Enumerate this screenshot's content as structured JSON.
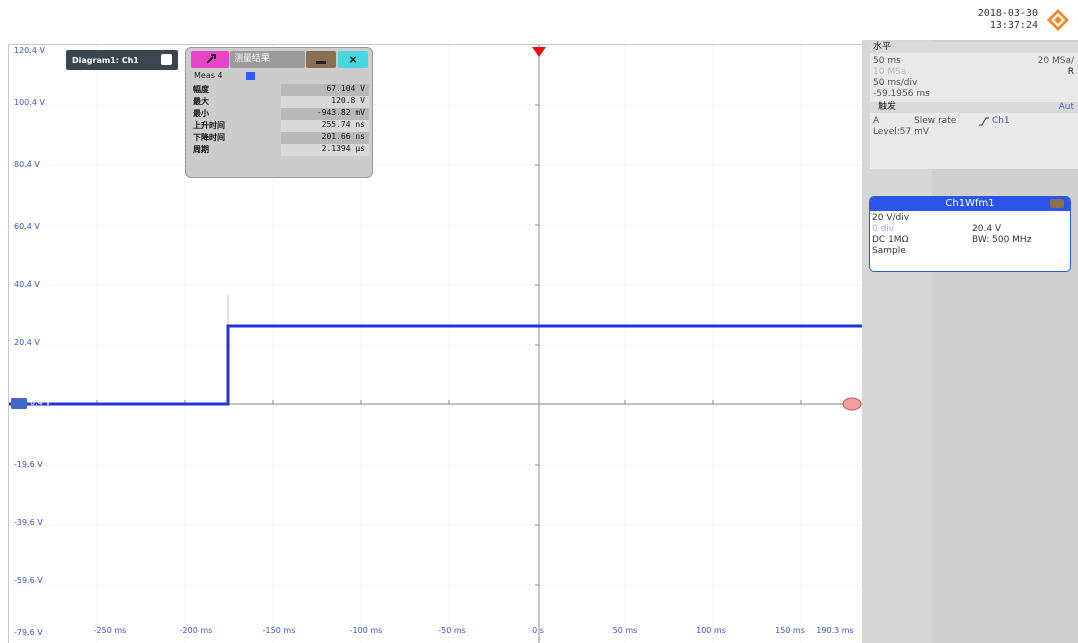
{
  "header": {
    "date": "2018-03-30",
    "time": "13:37:24"
  },
  "plot": {
    "y_labels": [
      "120.4 V",
      "100.4 V",
      "80.4 V",
      "60.4 V",
      "40.4 V",
      "20.4 V",
      "0.4 V",
      "-19.6 V",
      "-39.6 V",
      "-59.6 V",
      "-79.6 V"
    ],
    "x_labels": [
      "-250 ms",
      "-200 ms",
      "-150 ms",
      "-100 ms",
      "-50 ms",
      "0 s",
      "50 ms",
      "100 ms",
      "150 ms",
      "190.3 ms"
    ],
    "ch1_marker": "1"
  },
  "diagram_tab": {
    "label": "Diagram1: Ch1"
  },
  "measurement": {
    "title": "测量结果",
    "source": "Meas 4",
    "rows": [
      {
        "name": "幅度",
        "value": "67.104 V"
      },
      {
        "name": "最大",
        "value": "120.8 V"
      },
      {
        "name": "最小",
        "value": "-943.82 mV"
      },
      {
        "name": "上升时间",
        "value": "255.74 ns"
      },
      {
        "name": "下降时间",
        "value": "201.66 ns"
      },
      {
        "name": "周期",
        "value": "2.1394 µs"
      }
    ],
    "close_label": "×"
  },
  "horizontal": {
    "title": "水平",
    "time_scale": "50 ms",
    "sample_rate": "20 MSa/",
    "record_rate": "10 MSa",
    "r_label": "R",
    "div": "50 ms/div",
    "offset": "-59.1956 ms",
    "trigger_title": "触发",
    "trigger_mode": "Aut",
    "trigger_source_letter": "A",
    "trigger_type": "Slew rate",
    "trigger_ch": "Ch1",
    "level": "Level:57 mV"
  },
  "channel": {
    "title": "Ch1Wfm1",
    "scale": "20 V/div",
    "offset_div": "0 div",
    "offset_v": "20.4 V",
    "coupling": "DC 1MΩ",
    "bw": "BW: 500 MHz",
    "mode": "Sample"
  },
  "colors": {
    "trace": "#2233dd",
    "accent": "#2b55e8",
    "trigger": "#e81010"
  }
}
